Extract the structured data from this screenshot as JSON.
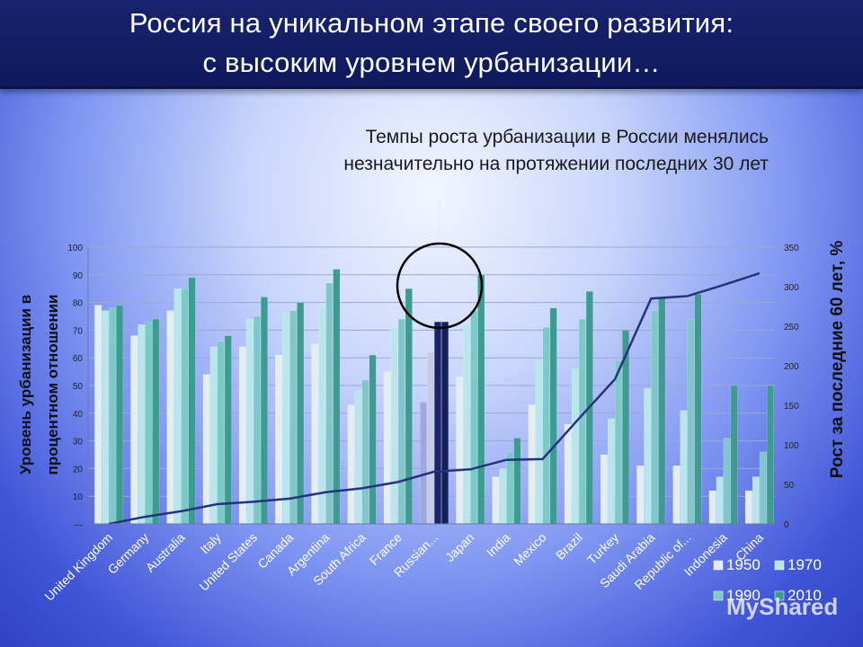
{
  "header": {
    "title_line1": "Россия на уникальном этапе своего развития:",
    "title_line2": "с высоким уровнем урбанизации…"
  },
  "annotation": {
    "line1": "Темпы роста урбанизации в России менялись",
    "line2": "незначительно на протяжении последних 30 лет"
  },
  "watermark": "MyShared",
  "colors": {
    "s1950": "#e4eef2",
    "s1970": "#b9e5ec",
    "s1990": "#7dc9c9",
    "s2010": "#3e9b92",
    "russia": "#1c2a6e",
    "line": "#24337c"
  },
  "chart_data": {
    "type": "bar",
    "xlabel": "",
    "ylabel": "Уровень урбанизации в процентном отношении",
    "y2label": "Рост за последние 60 лет, %",
    "ylim": [
      0,
      100
    ],
    "y2lim": [
      0,
      350
    ],
    "yticks": [
      "—",
      "10",
      "20",
      "30",
      "40",
      "50",
      "60",
      "70",
      "80",
      "90",
      "100"
    ],
    "y2ticks": [
      "0",
      "50",
      "100",
      "150",
      "200",
      "250",
      "300",
      "350"
    ],
    "categories": [
      "United Kingdom",
      "Germany",
      "Australia",
      "Italy",
      "United States",
      "Canada",
      "Argentina",
      "South Africa",
      "France",
      "Russian...",
      "Japan",
      "India",
      "Mexico",
      "Brazil",
      "Turkey",
      "Saudi Arabia",
      "Republic of...",
      "Indonesia",
      "China"
    ],
    "highlight": "Russian...",
    "series": [
      {
        "name": "1950",
        "values": [
          79,
          68,
          77,
          54,
          64,
          61,
          65,
          43,
          55,
          44,
          53,
          17,
          43,
          36,
          25,
          21,
          21,
          12,
          12
        ]
      },
      {
        "name": "1970",
        "values": [
          77,
          72,
          85,
          64,
          74,
          76,
          79,
          48,
          71,
          62,
          72,
          20,
          59,
          56,
          38,
          49,
          41,
          17,
          17
        ]
      },
      {
        "name": "1990",
        "values": [
          78,
          73,
          85,
          66,
          75,
          77,
          87,
          52,
          74,
          73,
          77,
          26,
          71,
          74,
          59,
          77,
          74,
          31,
          26
        ]
      },
      {
        "name": "2010",
        "values": [
          79,
          74,
          89,
          68,
          82,
          80,
          92,
          61,
          85,
          73,
          90,
          31,
          78,
          84,
          70,
          82,
          83,
          50,
          50
        ]
      }
    ],
    "growth_line": {
      "axis": "secondary",
      "values": [
        0,
        9,
        16,
        25,
        28,
        32,
        40,
        45,
        53,
        66,
        69,
        81,
        82,
        133,
        183,
        285,
        288,
        302,
        317
      ]
    },
    "legend": {
      "placement": "bottom-right",
      "entries": [
        "1950",
        "1970",
        "1990",
        "2010"
      ]
    }
  }
}
